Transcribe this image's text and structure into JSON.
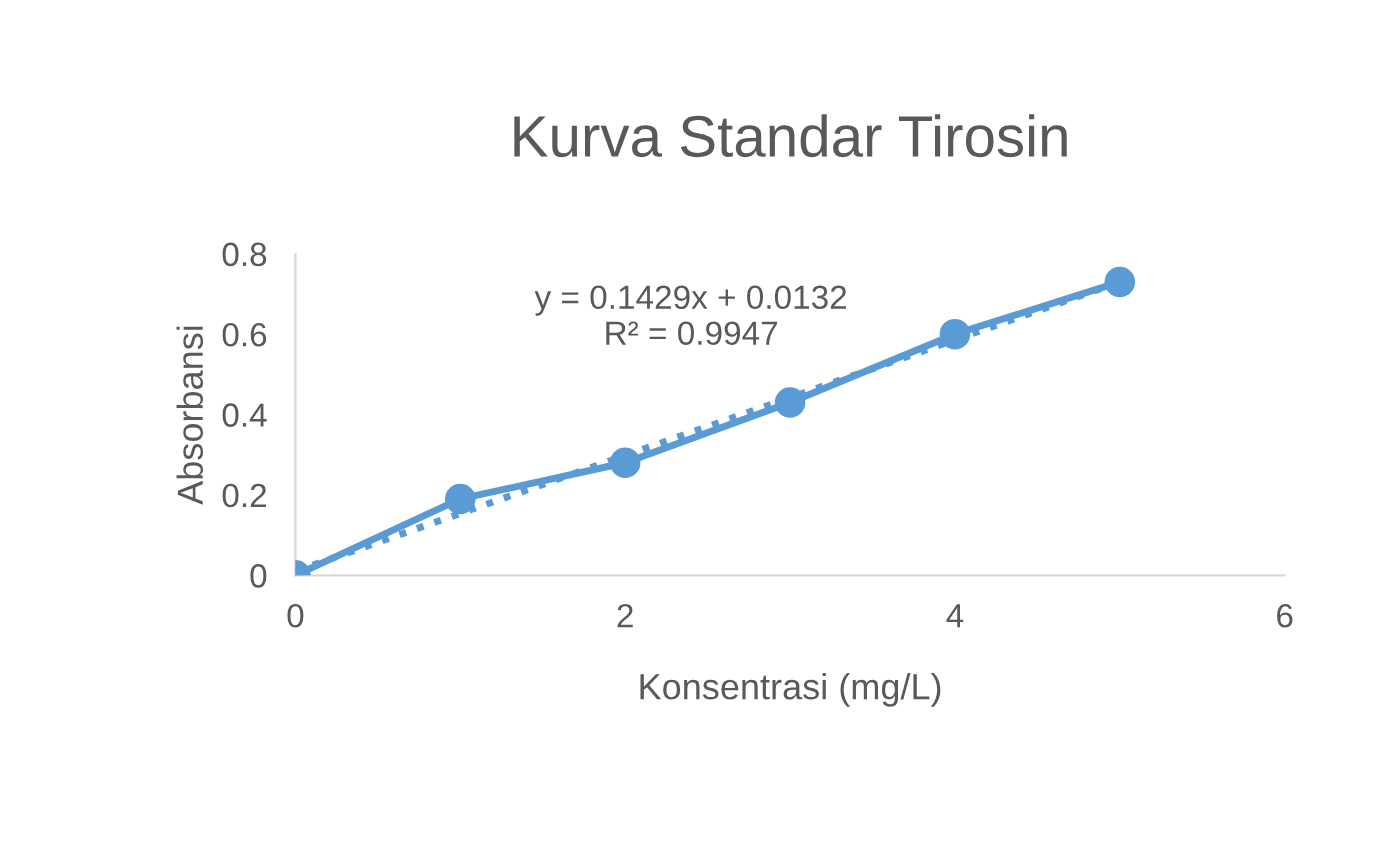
{
  "chart_data": {
    "type": "line",
    "title": "Kurva Standar Tirosin",
    "xlabel": "Konsentrasi (mg/L)",
    "ylabel": "Absorbansi",
    "xlim": [
      0,
      6
    ],
    "xticks": [
      0,
      2,
      4,
      6
    ],
    "ylim": [
      0,
      0.8
    ],
    "yticks": [
      0,
      0.2,
      0.4,
      0.6,
      0.8
    ],
    "series": [
      {
        "color": "#5b9bd5",
        "marker": "circle",
        "line_style": "solid",
        "x": [
          0,
          1,
          2,
          3,
          4,
          5
        ],
        "values": [
          0,
          0.19,
          0.28,
          0.43,
          0.6,
          0.73
        ]
      },
      {
        "color": "#5b9bd5",
        "marker": "none",
        "line_style": "dotted",
        "x": [
          0,
          5
        ],
        "values": [
          0.01,
          0.73
        ]
      }
    ],
    "annotations": [
      "y = 0.1429x + 0.0132\nR² = 0.9947"
    ],
    "grid": false,
    "legend": false
  }
}
